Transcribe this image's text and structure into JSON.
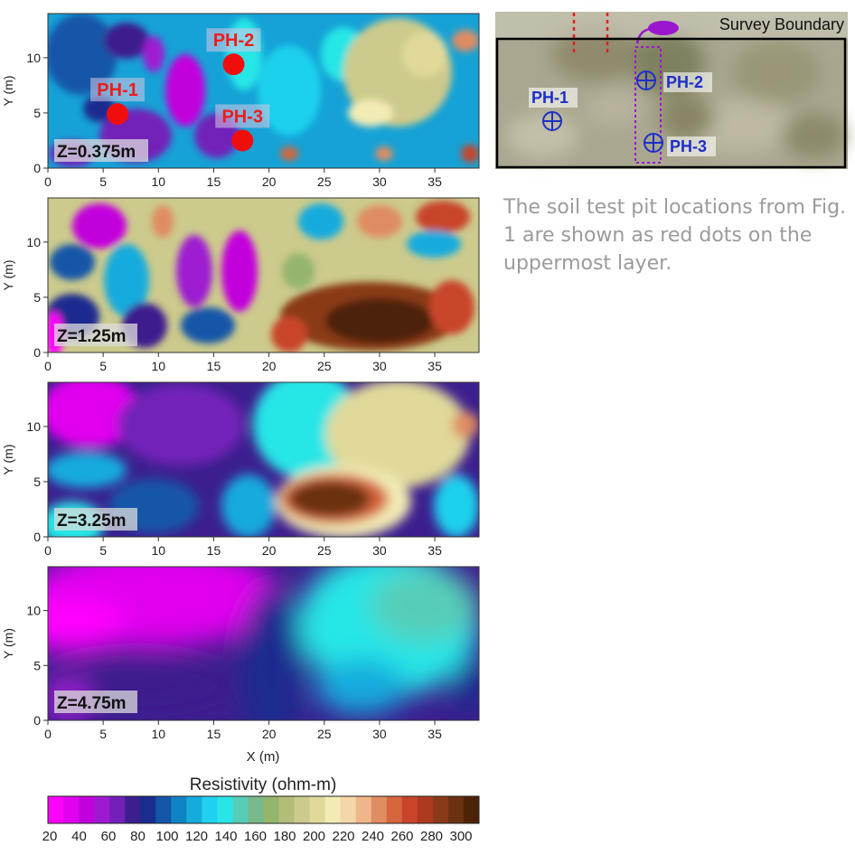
{
  "figure": {
    "x_axis_label": "X (m)",
    "y_axis_label": "Y (m)",
    "x_ticks": [
      "0",
      "5",
      "10",
      "15",
      "20",
      "25",
      "30",
      "35"
    ],
    "y_ticks": [
      "0",
      "5",
      "10"
    ],
    "colorbar_title": "Resistivity (ohm-m)",
    "colorbar_tick_labels": [
      "20",
      "40",
      "60",
      "80",
      "100",
      "120",
      "140",
      "160",
      "180",
      "200",
      "220",
      "240",
      "260",
      "280",
      "300"
    ],
    "colorbar_colors": [
      "#ff00ff",
      "#e000ee",
      "#c200dc",
      "#9e1ad1",
      "#7220b8",
      "#3c1f8e",
      "#1b2c8f",
      "#1456a8",
      "#0f83c4",
      "#14abdd",
      "#1fd1ee",
      "#28e6e6",
      "#56cdb8",
      "#77b98a",
      "#95b56d",
      "#b4bd78",
      "#ccca8c",
      "#e0d99a",
      "#f2ebb4",
      "#f5d6a8",
      "#f0b68a",
      "#e08c62",
      "#d6653d",
      "#c9442a",
      "#ad3a1f",
      "#8a3a18",
      "#6a3210",
      "#4d2308"
    ],
    "caption": "The soil test pit locations from Fig. 1 are shown as red dots on the uppermost layer.",
    "map": {
      "label": "Survey Boundary"
    }
  },
  "chart_data": [
    {
      "type": "heatmap",
      "panel_label": "Z=0.375m",
      "xlabel": "X (m)",
      "ylabel": "Y (m)",
      "xlim": [
        0,
        39
      ],
      "ylim": [
        0,
        14
      ],
      "color_scale": "Resistivity (ohm-m)",
      "color_range": [
        20,
        300
      ],
      "points": [
        {
          "label": "PH-1",
          "x": 6.3,
          "y": 4.9
        },
        {
          "label": "PH-2",
          "x": 16.8,
          "y": 9.4
        },
        {
          "label": "PH-3",
          "x": 17.6,
          "y": 2.5
        }
      ]
    },
    {
      "type": "heatmap",
      "panel_label": "Z=1.25m",
      "xlabel": "X (m)",
      "ylabel": "Y (m)",
      "xlim": [
        0,
        39
      ],
      "ylim": [
        0,
        14
      ],
      "color_scale": "Resistivity (ohm-m)",
      "color_range": [
        20,
        300
      ]
    },
    {
      "type": "heatmap",
      "panel_label": "Z=3.25m",
      "xlabel": "X (m)",
      "ylabel": "Y (m)",
      "xlim": [
        0,
        39
      ],
      "ylim": [
        0,
        14
      ],
      "color_scale": "Resistivity (ohm-m)",
      "color_range": [
        20,
        300
      ]
    },
    {
      "type": "heatmap",
      "panel_label": "Z=4.75m",
      "xlabel": "X (m)",
      "ylabel": "Y (m)",
      "xlim": [
        0,
        39
      ],
      "ylim": [
        0,
        14
      ],
      "color_scale": "Resistivity (ohm-m)",
      "color_range": [
        20,
        300
      ]
    },
    {
      "type": "scatter",
      "panel_label": "Survey Boundary",
      "points": [
        {
          "label": "PH-1"
        },
        {
          "label": "PH-2"
        },
        {
          "label": "PH-3"
        }
      ]
    }
  ]
}
